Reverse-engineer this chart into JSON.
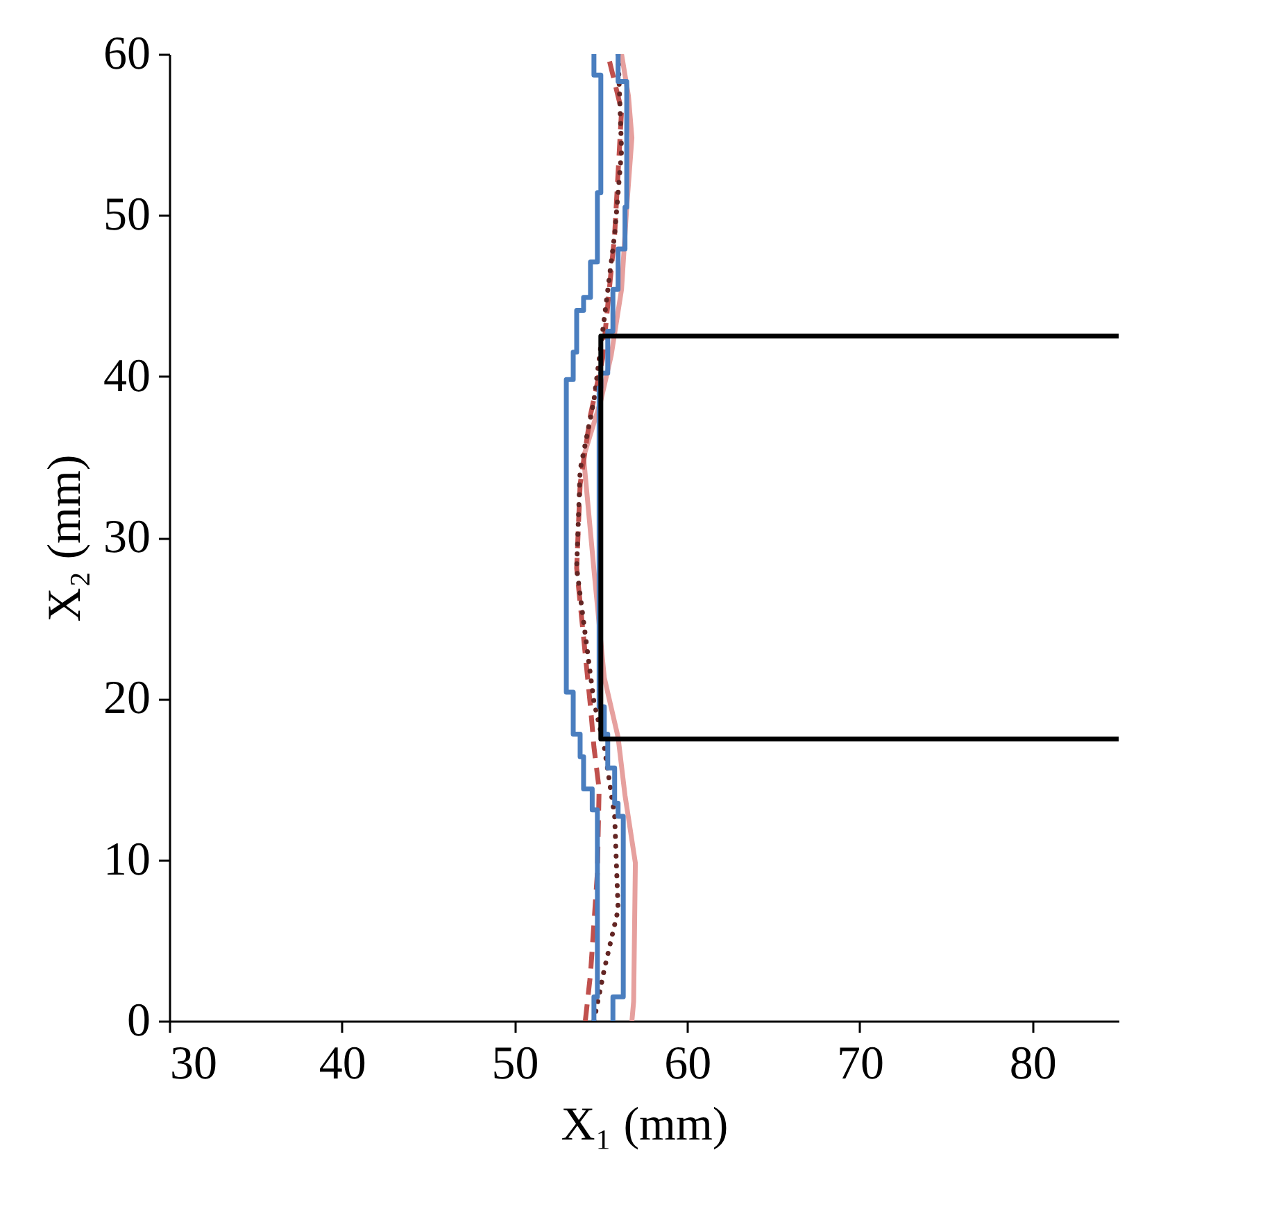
{
  "chart_data": {
    "type": "line",
    "xlabel": "X₁ (mm)",
    "ylabel": "X₂ (mm)",
    "xlim": [
      30,
      85
    ],
    "xticks": [
      30,
      40,
      50,
      60,
      70,
      80
    ],
    "ylim": [
      0,
      60
    ],
    "yticks": [
      0,
      10,
      20,
      30,
      40,
      50,
      60
    ],
    "series": [
      {
        "color": "#e6a09e",
        "line_style": "solid",
        "x": [
          56.8,
          56.9,
          57.0,
          56.4,
          56.0,
          55.2,
          54.6,
          54.0,
          55.0,
          55.6,
          56.2,
          56.5,
          56.8,
          56.6,
          56.2
        ],
        "values": [
          0,
          1.2,
          9.8,
          14.0,
          17.6,
          21.3,
          28.0,
          35.0,
          38.5,
          41.3,
          45.4,
          50.5,
          54.8,
          57.4,
          60
        ]
      },
      {
        "color": "#c0504d",
        "line_style": "dashed",
        "x": [
          54.1,
          54.4,
          54.8,
          54.9,
          54.6,
          54.4,
          53.6,
          53.8,
          54.4,
          55.1,
          55.8,
          56.2,
          55.4
        ],
        "values": [
          0,
          2.9,
          9.2,
          14.4,
          17.0,
          19.5,
          28.1,
          33.3,
          37.6,
          41.1,
          48.8,
          56.5,
          60
        ]
      },
      {
        "color": "#632523",
        "line_style": "dotted",
        "x": [
          54.6,
          55.2,
          56.0,
          55.8,
          55.2,
          54.6,
          53.6,
          53.8,
          54.6,
          55.2,
          55.8,
          56.2,
          56.0
        ],
        "values": [
          0,
          3.2,
          6.9,
          12.7,
          17.0,
          19.8,
          28.1,
          34.2,
          38.5,
          43.6,
          48.8,
          54.0,
          60
        ]
      },
      {
        "color": "#4a7ebf",
        "line_style": "solid",
        "x": [
          54.6,
          54.6,
          54.8,
          54.8,
          54.5,
          54.5,
          54.0,
          54.0,
          53.8,
          53.8,
          53.4,
          53.4,
          53.0,
          53.0,
          53.4,
          53.4,
          53.6,
          53.6,
          54.0,
          54.0,
          54.4,
          54.4,
          54.8,
          54.8,
          55.0,
          55.0,
          54.6,
          54.6
        ],
        "values": [
          0,
          1.5,
          1.5,
          13.1,
          13.1,
          14.4,
          14.4,
          16.4,
          16.4,
          17.8,
          17.8,
          20.4,
          20.4,
          39.8,
          39.8,
          41.5,
          41.5,
          44.1,
          44.1,
          44.9,
          44.9,
          47.1,
          47.1,
          51.4,
          51.4,
          58.7,
          58.7,
          60
        ]
      },
      {
        "color": "#4a7ebf",
        "line_style": "solid",
        "x": [
          55.7,
          55.7,
          56.3,
          56.3,
          56.0,
          56.0,
          55.8,
          55.8,
          55.4,
          55.4,
          55.2,
          55.2,
          54.9,
          54.9,
          55.0,
          55.0,
          55.4,
          55.4,
          55.7,
          55.7,
          56.0,
          56.0,
          56.4,
          56.4,
          56.5,
          56.5,
          56.0,
          56.0
        ],
        "values": [
          0,
          1.5,
          1.5,
          12.7,
          12.7,
          13.5,
          13.5,
          15.7,
          15.7,
          17.8,
          17.8,
          19.5,
          19.5,
          39.3,
          39.3,
          40.2,
          40.2,
          42.8,
          42.8,
          45.4,
          45.4,
          47.9,
          47.9,
          50.5,
          50.5,
          58.3,
          58.3,
          60
        ]
      },
      {
        "color": "#000000",
        "line_style": "solid",
        "x": [
          85,
          55,
          55,
          85
        ],
        "values": [
          42.5,
          42.5,
          17.5,
          17.5
        ]
      }
    ]
  }
}
